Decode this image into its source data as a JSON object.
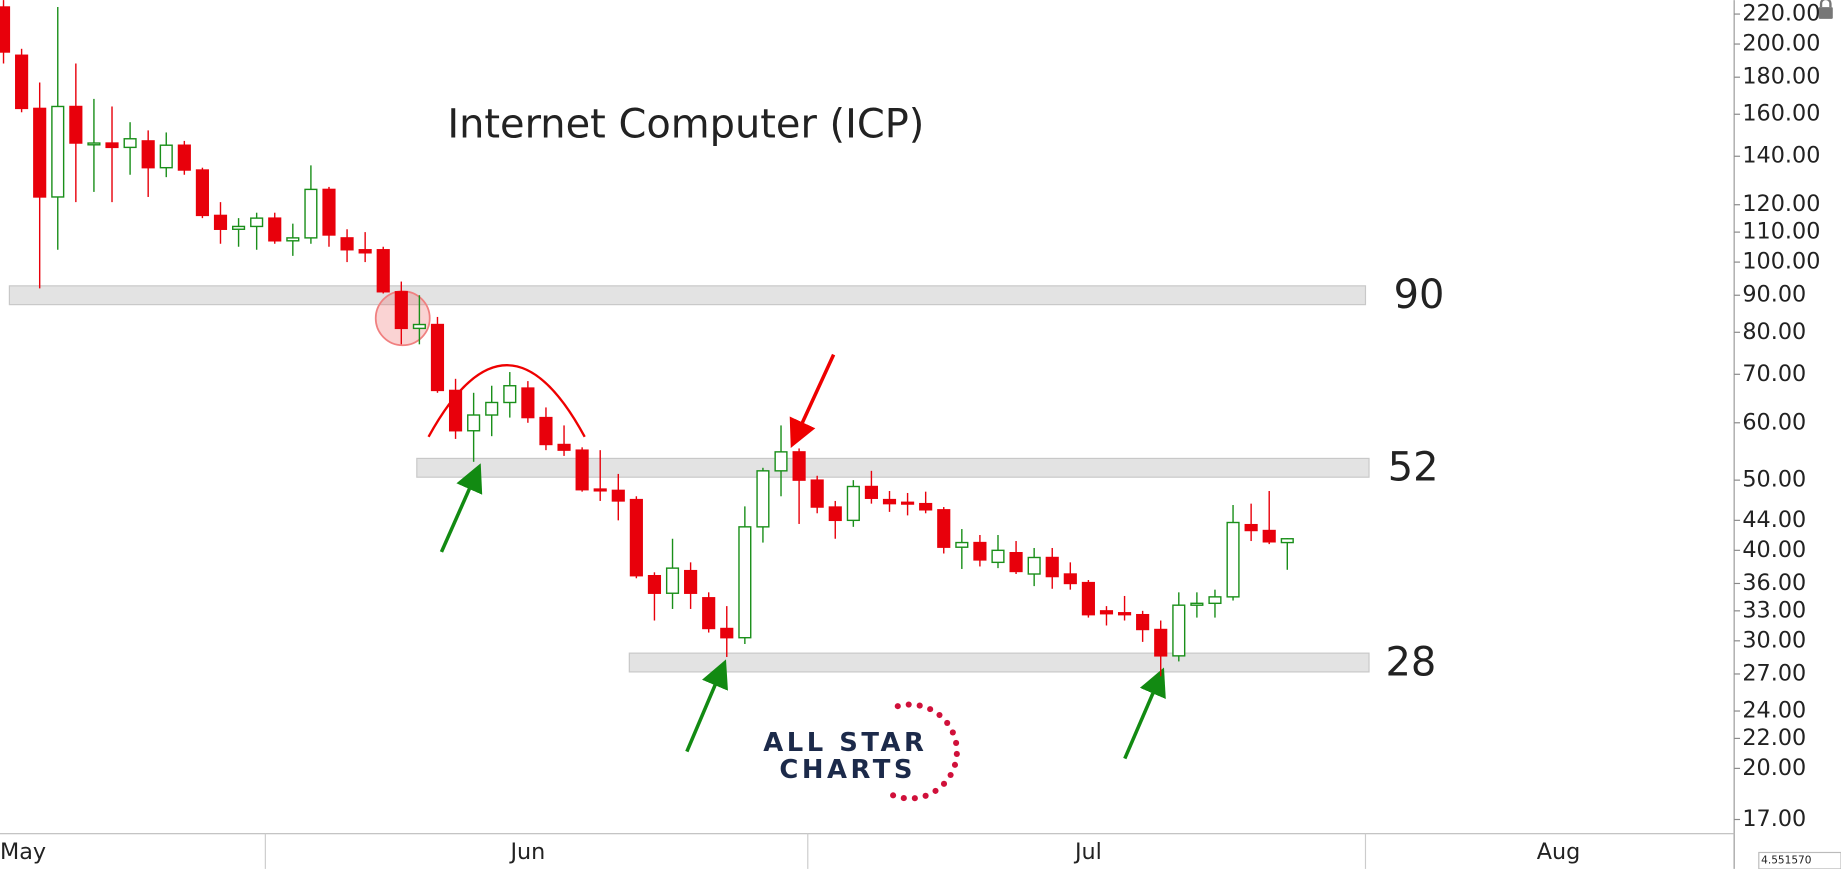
{
  "chart_data": {
    "type": "candlestick",
    "title": "Internet Computer (ICP)",
    "log_scale": true,
    "up_color": "#1a8f1a",
    "down_color": "#e8000b",
    "categories": [
      "May",
      null,
      null,
      null,
      null,
      null,
      null,
      null,
      null,
      null,
      null,
      null,
      null,
      null,
      null,
      null,
      null,
      null,
      null,
      null,
      null,
      null,
      null,
      null,
      null,
      null,
      null,
      null,
      null,
      "Jun",
      null,
      null,
      null,
      null,
      null,
      null,
      null,
      null,
      null,
      null,
      null,
      null,
      null,
      null,
      null,
      null,
      null,
      null,
      null,
      null,
      null,
      null,
      null,
      null,
      null,
      null,
      null,
      null,
      null,
      null,
      "Jul",
      null,
      null,
      null,
      null,
      null,
      null,
      null,
      null,
      null,
      null,
      null,
      null,
      null,
      null,
      null,
      null,
      null,
      null,
      null,
      null,
      null,
      null,
      null,
      null,
      null,
      "Aug",
      null,
      null,
      null,
      null,
      null,
      null,
      null,
      null,
      null
    ],
    "open": [
      225,
      193,
      163,
      123,
      164,
      146,
      146,
      144,
      147,
      135,
      145,
      134,
      116,
      111,
      112,
      115,
      107,
      108,
      126,
      108,
      104,
      104,
      91,
      81,
      82,
      66.5,
      58.5,
      61.5,
      64,
      67,
      61,
      56,
      55,
      48.6,
      48.4,
      47,
      36.9,
      34.9,
      37.5,
      34.4,
      31.2,
      30.3,
      43.1,
      51.5,
      54.7,
      50,
      45.9,
      44,
      49,
      47,
      46.6,
      46.4,
      45.5,
      40.4,
      41,
      38.5,
      39.7,
      37.1,
      39.1,
      37.1,
      36.1,
      33,
      32.8,
      32.6,
      31.1,
      28.6,
      33.6,
      33.8,
      34.5,
      43.4,
      42.6,
      41,
      null,
      null,
      null,
      null,
      null,
      null,
      null,
      null,
      null,
      null,
      null,
      null,
      null,
      null,
      null,
      null,
      null,
      null,
      null,
      null,
      null,
      null,
      null,
      null
    ],
    "high": [
      230,
      197,
      177,
      225,
      188,
      168,
      164,
      156,
      152,
      151,
      147,
      135,
      121,
      115,
      117,
      117,
      113,
      136,
      127,
      111,
      110,
      105,
      94,
      90,
      84,
      69,
      66,
      67.5,
      70.5,
      68.5,
      63,
      59.5,
      55.5,
      55,
      51,
      47.5,
      37.3,
      41.5,
      38.5,
      35,
      33.5,
      46,
      52,
      59.5,
      55.3,
      50.7,
      46.8,
      50,
      51.5,
      48.3,
      48,
      48.2,
      45.9,
      42.8,
      42,
      42,
      41.2,
      40.3,
      40.3,
      38.5,
      36.4,
      33.5,
      34.6,
      33,
      32,
      35,
      35,
      35.3,
      46.2,
      46.4,
      48.3,
      41.6,
      null,
      null,
      null,
      null,
      null,
      null,
      null,
      null,
      null,
      null,
      null,
      null,
      null,
      null,
      null,
      null,
      null,
      null,
      null,
      null,
      null,
      null,
      null,
      null
    ],
    "low": [
      188,
      161,
      92,
      104,
      121,
      125,
      121,
      132,
      123,
      131,
      132,
      115,
      106,
      105,
      104,
      106,
      102,
      106,
      105,
      100,
      100,
      90.5,
      77,
      77,
      66,
      57,
      53,
      57.5,
      61,
      60,
      55,
      54,
      48.2,
      46.8,
      44,
      36.6,
      32,
      33.2,
      33.2,
      30.8,
      28.5,
      29.7,
      41,
      47.5,
      43.5,
      45,
      41.5,
      43.1,
      46.4,
      45.2,
      44.7,
      45,
      39.6,
      37.7,
      38,
      37.8,
      37.1,
      35.7,
      35.4,
      35.3,
      32.3,
      31.5,
      32,
      29.9,
      26.8,
      28.1,
      32.3,
      32.3,
      34.1,
      41.2,
      40.8,
      37.6,
      null,
      null,
      null,
      null,
      null,
      null,
      null,
      null,
      null,
      null,
      null,
      null,
      null,
      null,
      null,
      null,
      null,
      null,
      null,
      null,
      null,
      null,
      null,
      null
    ],
    "close": [
      195,
      163,
      123,
      164,
      146,
      146,
      144,
      148,
      135,
      145,
      134,
      116,
      111,
      112,
      115,
      107,
      108,
      126,
      109,
      104,
      103,
      91,
      81,
      82,
      66.5,
      58.5,
      61.5,
      64,
      67.5,
      61,
      56,
      55,
      48.5,
      48.4,
      46.8,
      36.9,
      34.9,
      37.8,
      34.9,
      31.2,
      30.3,
      43.1,
      51.5,
      54.7,
      50,
      45.9,
      44,
      49,
      47.2,
      46.4,
      46.4,
      45.5,
      40.4,
      41,
      38.8,
      40,
      37.4,
      39.1,
      36.8,
      36,
      32.6,
      32.7,
      32.6,
      31.1,
      28.6,
      33.6,
      33.8,
      34.5,
      43.7,
      42.6,
      41.1,
      41.5,
      null,
      null,
      null,
      null,
      null,
      null,
      null,
      null,
      null,
      null,
      null,
      null,
      null,
      null,
      null,
      null,
      null,
      null,
      null,
      null,
      null,
      null,
      null,
      null
    ],
    "ylim": [
      16.25,
      230
    ],
    "yticks": [
      {
        "value": 17,
        "label": "17.00"
      },
      {
        "value": 20,
        "label": "20.00"
      },
      {
        "value": 22,
        "label": "22.00"
      },
      {
        "value": 24,
        "label": "24.00"
      },
      {
        "value": 27,
        "label": "27.00"
      },
      {
        "value": 30,
        "label": "30.00"
      },
      {
        "value": 33,
        "label": "33.00"
      },
      {
        "value": 36,
        "label": "36.00"
      },
      {
        "value": 40,
        "label": "40.00"
      },
      {
        "value": 44,
        "label": "44.00"
      },
      {
        "value": 50,
        "label": "50.00"
      },
      {
        "value": 60,
        "label": "60.00"
      },
      {
        "value": 70,
        "label": "70.00"
      },
      {
        "value": 80,
        "label": "80.00"
      },
      {
        "value": 90,
        "label": "90.00"
      },
      {
        "value": 100,
        "label": "100.00"
      },
      {
        "value": 110,
        "label": "110.00"
      },
      {
        "value": 120,
        "label": "120.00"
      },
      {
        "value": 140,
        "label": "140.00"
      },
      {
        "value": 160,
        "label": "160.00"
      },
      {
        "value": 180,
        "label": "180.00"
      },
      {
        "value": 200,
        "label": "200.00"
      },
      {
        "value": 220,
        "label": "220.00"
      }
    ],
    "levels": [
      90,
      52,
      28
    ],
    "logo": [
      "ALL STAR",
      "CHARTS"
    ],
    "corner_value": "4.551570"
  }
}
